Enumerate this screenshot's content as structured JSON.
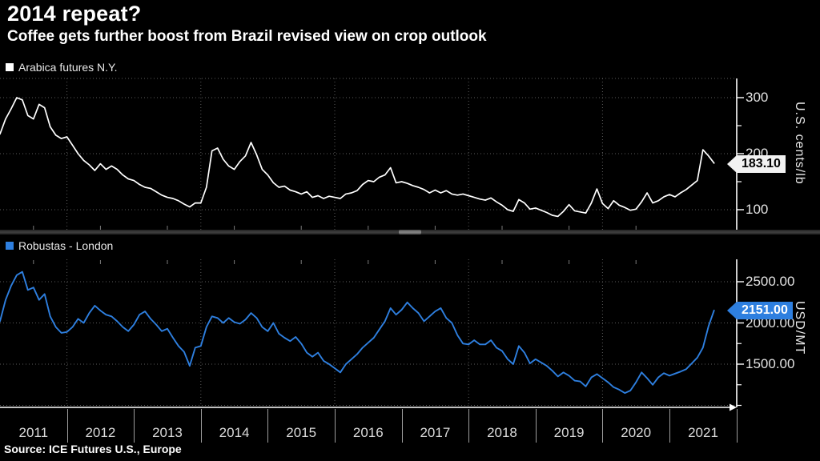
{
  "header": {
    "title": "2014 repeat?",
    "subtitle": "Coffee gets further boost from Brazil revised view on crop outlook"
  },
  "source": {
    "text": "Source: ICE Futures U.S., Europe"
  },
  "colors": {
    "background": "#000000",
    "arabica_line": "#ffffff",
    "robusta_line": "#2e7fdf",
    "grid": "#5c5c5c",
    "axis": "#ffffff",
    "tick_label": "#e2e2e2",
    "arabica_tag_bg": "#f2f2f2",
    "arabica_tag_text": "#000000",
    "robusta_tag_bg": "#2e7fdf",
    "robusta_tag_text": "#ffffff"
  },
  "x_axis": {
    "years": [
      "2011",
      "2012",
      "2013",
      "2014",
      "2015",
      "2016",
      "2017",
      "2018",
      "2019",
      "2020",
      "2021"
    ],
    "gridline_years": [
      2012,
      2014,
      2016,
      2018,
      2020
    ]
  },
  "chart_data": [
    {
      "type": "line",
      "title": "Arabica futures N.Y.",
      "unit": "U.S. cents/lb",
      "color": "#ffffff",
      "last_value": 183.1,
      "last_label": "183.10",
      "ylim": [
        60,
        335
      ],
      "grid": true,
      "yticks": [
        {
          "v": 300,
          "label": "300"
        },
        {
          "v": 200,
          "label": "200"
        },
        {
          "v": 100,
          "label": "100"
        }
      ],
      "minor_ticks": [
        250,
        150
      ],
      "gridlines": [
        300,
        200,
        100
      ],
      "monthly": {
        "2011": [
          235,
          262,
          280,
          300,
          296,
          268,
          262,
          288,
          282,
          248,
          233,
          227
        ],
        "2012": [
          230,
          215,
          200,
          188,
          180,
          170,
          182,
          172,
          178,
          172,
          162,
          155
        ],
        "2013": [
          152,
          145,
          140,
          138,
          132,
          126,
          122,
          120,
          116,
          110,
          105,
          112
        ],
        "2014": [
          112,
          140,
          205,
          210,
          190,
          178,
          172,
          186,
          196,
          220,
          198,
          172
        ],
        "2015": [
          162,
          148,
          140,
          142,
          135,
          132,
          128,
          132,
          122,
          125,
          120,
          124
        ],
        "2016": [
          122,
          120,
          128,
          130,
          134,
          145,
          152,
          150,
          158,
          162,
          175,
          148
        ],
        "2017": [
          150,
          147,
          143,
          140,
          136,
          130,
          135,
          130,
          134,
          128,
          126,
          128
        ],
        "2018": [
          125,
          122,
          119,
          117,
          121,
          114,
          108,
          100,
          97,
          118,
          112,
          101
        ],
        "2019": [
          103,
          99,
          95,
          90,
          88,
          97,
          109,
          98,
          96,
          94,
          112,
          137
        ],
        "2020": [
          111,
          102,
          116,
          108,
          104,
          99,
          101,
          114,
          130,
          112,
          116,
          123
        ],
        "2021": [
          127,
          123,
          130,
          136,
          144,
          152,
          207,
          196,
          183.1
        ]
      }
    },
    {
      "type": "line",
      "title": "Robustas - London",
      "unit": "USD/MT",
      "color": "#2e7fdf",
      "last_value": 2151.0,
      "last_label": "2151.00",
      "ylim": [
        1000,
        2770
      ],
      "grid": true,
      "yticks": [
        {
          "v": 2500,
          "label": "2500.00"
        },
        {
          "v": 2000,
          "label": "2000.00"
        },
        {
          "v": 1500,
          "label": "1500.00"
        }
      ],
      "minor_ticks": [
        2250,
        1750,
        1250,
        1000
      ],
      "gridlines": [
        2500,
        2000,
        1500,
        1000
      ],
      "monthly": {
        "2011": [
          2020,
          2280,
          2450,
          2580,
          2620,
          2400,
          2430,
          2280,
          2350,
          2080,
          1950,
          1880
        ],
        "2012": [
          1890,
          1950,
          2050,
          2000,
          2120,
          2210,
          2150,
          2100,
          2080,
          2020,
          1950,
          1900
        ],
        "2013": [
          1980,
          2100,
          2140,
          2050,
          1980,
          1900,
          1930,
          1820,
          1720,
          1650,
          1480,
          1700
        ],
        "2014": [
          1720,
          1950,
          2080,
          2060,
          2000,
          2060,
          2010,
          1990,
          2040,
          2120,
          2060,
          1950
        ],
        "2015": [
          1900,
          2000,
          1870,
          1820,
          1780,
          1830,
          1750,
          1640,
          1590,
          1640,
          1540,
          1500
        ],
        "2016": [
          1450,
          1400,
          1500,
          1560,
          1620,
          1700,
          1760,
          1820,
          1920,
          2020,
          2180,
          2100
        ],
        "2017": [
          2160,
          2250,
          2180,
          2120,
          2020,
          2080,
          2140,
          2180,
          2060,
          2000,
          1850,
          1750
        ],
        "2018": [
          1740,
          1790,
          1740,
          1740,
          1790,
          1700,
          1660,
          1560,
          1500,
          1720,
          1640,
          1510
        ],
        "2019": [
          1560,
          1520,
          1480,
          1420,
          1350,
          1400,
          1360,
          1300,
          1290,
          1230,
          1340,
          1380
        ],
        "2020": [
          1330,
          1280,
          1220,
          1190,
          1150,
          1180,
          1280,
          1400,
          1330,
          1250,
          1340,
          1390
        ],
        "2021": [
          1360,
          1385,
          1410,
          1440,
          1510,
          1580,
          1700,
          1960,
          2151
        ]
      }
    }
  ]
}
